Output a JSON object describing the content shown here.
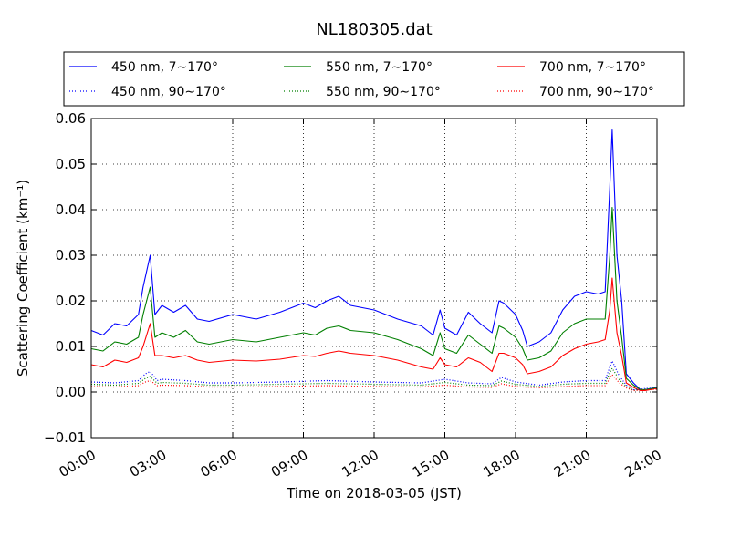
{
  "chart_data": {
    "type": "line",
    "title": "NL180305.dat",
    "xlabel": "Time on 2018-03-05 (JST)",
    "ylabel": "Scattering Coefficient (km⁻¹)",
    "xlim": [
      0,
      24
    ],
    "ylim": [
      -0.01,
      0.06
    ],
    "x_ticks": [
      0,
      3,
      6,
      9,
      12,
      15,
      18,
      21,
      24
    ],
    "x_tick_labels": [
      "00:00",
      "03:00",
      "06:00",
      "09:00",
      "12:00",
      "15:00",
      "18:00",
      "21:00",
      "24:00"
    ],
    "y_ticks": [
      -0.01,
      0.0,
      0.01,
      0.02,
      0.03,
      0.04,
      0.05,
      0.06
    ],
    "y_tick_labels": [
      "−0.01",
      "0.00",
      "0.01",
      "0.02",
      "0.03",
      "0.04",
      "0.05",
      "0.06"
    ],
    "grid": true,
    "legend_position": "top",
    "series": [
      {
        "name": "450 nm, 7∼170°",
        "color": "#0000ff",
        "style": "solid",
        "x": [
          0,
          0.5,
          1.0,
          1.5,
          2.0,
          2.2,
          2.5,
          2.7,
          3.0,
          3.5,
          4.0,
          4.5,
          5.0,
          6.0,
          7.0,
          8.0,
          9.0,
          9.5,
          10.0,
          10.5,
          11.0,
          12.0,
          13.0,
          14.0,
          14.5,
          14.8,
          15.0,
          15.5,
          16.0,
          16.5,
          17.0,
          17.3,
          17.5,
          18.0,
          18.3,
          18.5,
          19.0,
          19.5,
          20.0,
          20.5,
          21.0,
          21.5,
          21.8,
          22.0,
          22.1,
          22.3,
          22.5,
          22.7,
          23.0,
          23.3,
          23.5,
          24.0
        ],
        "y": [
          0.0135,
          0.0125,
          0.015,
          0.0145,
          0.017,
          0.023,
          0.03,
          0.017,
          0.019,
          0.0175,
          0.019,
          0.016,
          0.0155,
          0.017,
          0.016,
          0.0175,
          0.0195,
          0.0185,
          0.02,
          0.021,
          0.019,
          0.018,
          0.016,
          0.0145,
          0.0125,
          0.018,
          0.014,
          0.0125,
          0.0175,
          0.015,
          0.013,
          0.02,
          0.0195,
          0.017,
          0.0135,
          0.01,
          0.011,
          0.013,
          0.018,
          0.021,
          0.022,
          0.0215,
          0.022,
          0.045,
          0.0575,
          0.03,
          0.02,
          0.004,
          0.002,
          0.0005,
          0.0005,
          0.001
        ]
      },
      {
        "name": "550 nm, 7∼170°",
        "color": "#007f00",
        "style": "solid",
        "x": [
          0,
          0.5,
          1.0,
          1.5,
          2.0,
          2.2,
          2.5,
          2.7,
          3.0,
          3.5,
          4.0,
          4.5,
          5.0,
          6.0,
          7.0,
          8.0,
          9.0,
          9.5,
          10.0,
          10.5,
          11.0,
          12.0,
          13.0,
          14.0,
          14.5,
          14.8,
          15.0,
          15.5,
          16.0,
          16.5,
          17.0,
          17.3,
          17.5,
          18.0,
          18.3,
          18.5,
          19.0,
          19.5,
          20.0,
          20.5,
          21.0,
          21.5,
          21.8,
          22.0,
          22.1,
          22.3,
          22.5,
          22.7,
          23.0,
          23.3,
          23.5,
          24.0
        ],
        "y": [
          0.0095,
          0.009,
          0.011,
          0.0105,
          0.012,
          0.017,
          0.023,
          0.012,
          0.013,
          0.012,
          0.0135,
          0.011,
          0.0105,
          0.0115,
          0.011,
          0.012,
          0.013,
          0.0125,
          0.014,
          0.0145,
          0.0135,
          0.013,
          0.0115,
          0.0095,
          0.008,
          0.013,
          0.0095,
          0.0085,
          0.0125,
          0.0105,
          0.0085,
          0.0145,
          0.014,
          0.012,
          0.0095,
          0.007,
          0.0075,
          0.009,
          0.013,
          0.015,
          0.016,
          0.016,
          0.016,
          0.03,
          0.0405,
          0.02,
          0.012,
          0.003,
          0.0015,
          0.0005,
          0.0005,
          0.001
        ]
      },
      {
        "name": "700 nm, 7∼170°",
        "color": "#ff0000",
        "style": "solid",
        "x": [
          0,
          0.5,
          1.0,
          1.5,
          2.0,
          2.2,
          2.5,
          2.7,
          3.0,
          3.5,
          4.0,
          4.5,
          5.0,
          6.0,
          7.0,
          8.0,
          9.0,
          9.5,
          10.0,
          10.5,
          11.0,
          12.0,
          13.0,
          14.0,
          14.5,
          14.8,
          15.0,
          15.5,
          16.0,
          16.5,
          17.0,
          17.3,
          17.5,
          18.0,
          18.3,
          18.5,
          19.0,
          19.5,
          20.0,
          20.5,
          21.0,
          21.5,
          21.8,
          22.0,
          22.1,
          22.3,
          22.5,
          22.7,
          23.0,
          23.3,
          23.5,
          24.0
        ],
        "y": [
          0.006,
          0.0055,
          0.007,
          0.0065,
          0.0075,
          0.01,
          0.015,
          0.008,
          0.008,
          0.0075,
          0.008,
          0.007,
          0.0065,
          0.007,
          0.0068,
          0.0072,
          0.008,
          0.0078,
          0.0085,
          0.009,
          0.0085,
          0.008,
          0.007,
          0.0055,
          0.005,
          0.0075,
          0.006,
          0.0055,
          0.0075,
          0.0065,
          0.0045,
          0.0085,
          0.0085,
          0.0075,
          0.006,
          0.004,
          0.0045,
          0.0055,
          0.008,
          0.0095,
          0.0105,
          0.011,
          0.0115,
          0.018,
          0.025,
          0.013,
          0.008,
          0.002,
          0.001,
          0.0003,
          0.0003,
          0.0008
        ]
      },
      {
        "name": "450 nm, 90∼170°",
        "color": "#0000ff",
        "style": "dotted",
        "x": [
          0,
          1.0,
          2.0,
          2.3,
          2.5,
          2.8,
          3.0,
          4.0,
          5.0,
          6.0,
          8.0,
          10.0,
          12.0,
          14.0,
          15.0,
          16.0,
          17.0,
          17.4,
          18.0,
          19.0,
          20.0,
          21.0,
          21.8,
          22.0,
          22.1,
          22.4,
          22.7,
          23.0,
          24.0
        ],
        "y": [
          0.0022,
          0.002,
          0.0025,
          0.004,
          0.0045,
          0.0025,
          0.0028,
          0.0025,
          0.002,
          0.002,
          0.0022,
          0.0025,
          0.0022,
          0.002,
          0.0028,
          0.002,
          0.0018,
          0.0032,
          0.0022,
          0.0015,
          0.0022,
          0.0025,
          0.0025,
          0.0055,
          0.0068,
          0.0035,
          0.0015,
          0.0005,
          0.001
        ]
      },
      {
        "name": "550 nm, 90∼170°",
        "color": "#007f00",
        "style": "dotted",
        "x": [
          0,
          1.0,
          2.0,
          2.3,
          2.5,
          2.8,
          3.0,
          4.0,
          5.0,
          6.0,
          8.0,
          10.0,
          12.0,
          14.0,
          15.0,
          16.0,
          17.0,
          17.4,
          18.0,
          19.0,
          20.0,
          21.0,
          21.8,
          22.0,
          22.1,
          22.4,
          22.7,
          23.0,
          24.0
        ],
        "y": [
          0.0017,
          0.0015,
          0.0019,
          0.003,
          0.0034,
          0.0019,
          0.0021,
          0.0019,
          0.0015,
          0.0015,
          0.0017,
          0.0019,
          0.0017,
          0.0015,
          0.0021,
          0.0015,
          0.0014,
          0.0024,
          0.0017,
          0.0012,
          0.0017,
          0.0019,
          0.0019,
          0.0042,
          0.0052,
          0.0027,
          0.0012,
          0.0004,
          0.0008
        ]
      },
      {
        "name": "700 nm, 90∼170°",
        "color": "#ff0000",
        "style": "dotted",
        "x": [
          0,
          1.0,
          2.0,
          2.3,
          2.5,
          2.8,
          3.0,
          4.0,
          5.0,
          6.0,
          8.0,
          10.0,
          12.0,
          14.0,
          15.0,
          16.0,
          17.0,
          17.4,
          18.0,
          19.0,
          20.0,
          21.0,
          21.8,
          22.0,
          22.1,
          22.4,
          22.7,
          23.0,
          24.0
        ],
        "y": [
          0.0012,
          0.0011,
          0.0014,
          0.0022,
          0.0025,
          0.0014,
          0.0015,
          0.0014,
          0.0011,
          0.0011,
          0.0012,
          0.0014,
          0.0012,
          0.0011,
          0.0015,
          0.0011,
          0.001,
          0.0018,
          0.0012,
          0.0009,
          0.0012,
          0.0014,
          0.0014,
          0.003,
          0.0038,
          0.002,
          0.0009,
          0.0003,
          0.0006
        ]
      }
    ]
  }
}
